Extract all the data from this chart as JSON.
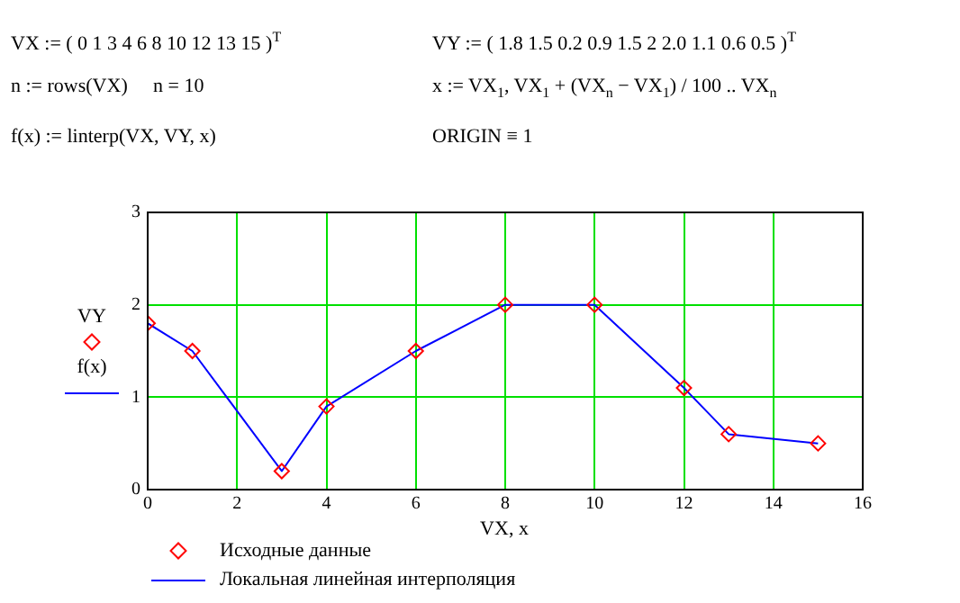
{
  "chart_data": {
    "type": "scatter",
    "annotations": [
      "VX := ( 0  1  3  4  6  8  10  12  13  15 )$^{T}$",
      "VY := ( 1.8  1.5  0.2  0.9  1.5  2  2.0  1.1  0.6  0.5 )$^{T}$",
      "n := rows(VX)",
      "n = 10",
      "x := VX$_{1}$, VX$_{1}$ + (VX$_{n}$ − VX$_{1}$) / 100 .. VX$_{n}$",
      "f(x) := linterp(VX, VY, x)",
      "ORIGIN ≡ 1"
    ],
    "xlabel": "VX, x",
    "ylabel": "VY\nf(x)",
    "x": [
      0,
      1,
      3,
      4,
      6,
      8,
      10,
      12,
      13,
      15
    ],
    "series": [
      {
        "name": "Исходные данные",
        "color": "#ff0000",
        "marker": "diamond",
        "values": [
          1.8,
          1.5,
          0.2,
          0.9,
          1.5,
          2,
          2.0,
          1.1,
          0.6,
          0.5
        ]
      },
      {
        "name": "Локальная линейная интерполяция",
        "type": "line",
        "color": "#0000ff",
        "marker": "none",
        "line_style": "solid",
        "values": [
          1.8,
          1.5,
          0.2,
          0.9,
          1.5,
          2,
          2.0,
          1.1,
          0.6,
          0.5
        ]
      }
    ],
    "xlim": [
      0,
      16
    ],
    "xticks": [
      0,
      2,
      4,
      6,
      8,
      10,
      12,
      14,
      16
    ],
    "ylim": [
      0,
      3
    ],
    "yticks": [
      0,
      1,
      2,
      3
    ],
    "grid": true,
    "legend": "bottom left"
  }
}
